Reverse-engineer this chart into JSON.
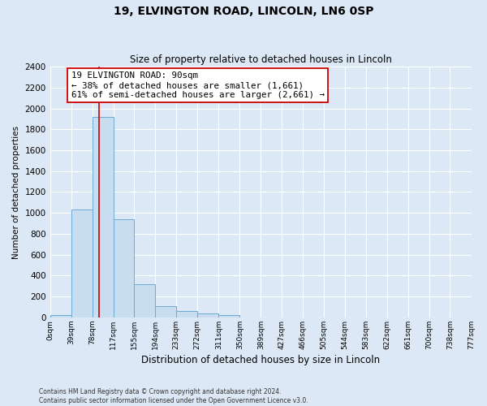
{
  "title1": "19, ELVINGTON ROAD, LINCOLN, LN6 0SP",
  "title2": "Size of property relative to detached houses in Lincoln",
  "xlabel": "Distribution of detached houses by size in Lincoln",
  "ylabel": "Number of detached properties",
  "bar_edges": [
    0,
    39,
    78,
    117,
    155,
    194,
    233,
    272,
    311,
    350,
    389,
    427,
    466,
    505,
    544,
    583,
    622,
    661,
    700,
    738,
    777
  ],
  "bar_heights": [
    20,
    1030,
    1920,
    940,
    320,
    110,
    60,
    40,
    20,
    0,
    0,
    0,
    0,
    0,
    0,
    0,
    0,
    0,
    0,
    0
  ],
  "tick_labels": [
    "0sqm",
    "39sqm",
    "78sqm",
    "117sqm",
    "155sqm",
    "194sqm",
    "233sqm",
    "272sqm",
    "311sqm",
    "350sqm",
    "389sqm",
    "427sqm",
    "466sqm",
    "505sqm",
    "544sqm",
    "583sqm",
    "622sqm",
    "661sqm",
    "700sqm",
    "738sqm",
    "777sqm"
  ],
  "bar_color": "#c8ddf0",
  "bar_edge_color": "#6baad4",
  "bg_color": "#dce8f5",
  "grid_color": "#ffffff",
  "vline_x": 90,
  "vline_color": "#cc0000",
  "annotation_line1": "19 ELVINGTON ROAD: 90sqm",
  "annotation_line2": "← 38% of detached houses are smaller (1,661)",
  "annotation_line3": "61% of semi-detached houses are larger (2,661) →",
  "annotation_box_color": "#ffffff",
  "annotation_box_edge": "#cc0000",
  "ylim": [
    0,
    2400
  ],
  "yticks": [
    0,
    200,
    400,
    600,
    800,
    1000,
    1200,
    1400,
    1600,
    1800,
    2000,
    2200,
    2400
  ],
  "footer1": "Contains HM Land Registry data © Crown copyright and database right 2024.",
  "footer2": "Contains public sector information licensed under the Open Government Licence v3.0."
}
